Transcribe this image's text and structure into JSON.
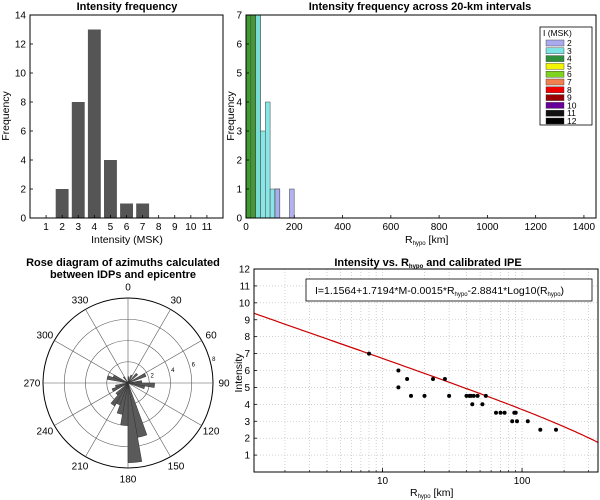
{
  "colors": {
    "bar_gray": "#555555",
    "fit_line": "#cc0000",
    "grid": "#b5b5b5"
  },
  "chart_data": [
    {
      "type": "bar",
      "title": "Intensity frequency",
      "xlabel": "Intensity (MSK)",
      "ylabel": "Frequency",
      "xlim": [
        0,
        12
      ],
      "ylim": [
        0,
        14
      ],
      "xticks": [
        1,
        2,
        3,
        4,
        5,
        6,
        7,
        8,
        9,
        10,
        11
      ],
      "yticks": [
        0,
        2,
        4,
        6,
        8,
        10,
        12,
        14
      ],
      "categories": [
        1,
        2,
        3,
        4,
        5,
        6,
        7,
        8,
        9,
        10,
        11
      ],
      "values": [
        0,
        2,
        8,
        13,
        4,
        1,
        1,
        0,
        0,
        0,
        0
      ]
    },
    {
      "type": "bar",
      "title": "Intensity frequency across 20-km intervals",
      "xlabel": "R",
      "xlabel_sub": "hypo",
      "xlabel_unit": " [km]",
      "ylabel": "Frequency",
      "xlim": [
        0,
        1450
      ],
      "ylim": [
        0,
        7
      ],
      "xticks": [
        0,
        200,
        400,
        600,
        800,
        1000,
        1200,
        1400
      ],
      "yticks": [
        0,
        1,
        2,
        3,
        4,
        5,
        6,
        7
      ],
      "legend_title": "I (MSK)",
      "legend_position": "top-right",
      "legend": [
        {
          "name": "2",
          "color": "#aaaaee"
        },
        {
          "name": "3",
          "color": "#7de3e3"
        },
        {
          "name": "4",
          "color": "#2f8f3a"
        },
        {
          "name": "5",
          "color": "#f4f400"
        },
        {
          "name": "6",
          "color": "#7ed321"
        },
        {
          "name": "7",
          "color": "#f08050"
        },
        {
          "name": "8",
          "color": "#ee0000"
        },
        {
          "name": "9",
          "color": "#990000"
        },
        {
          "name": "10",
          "color": "#660099"
        },
        {
          "name": "11",
          "color": "#111111"
        },
        {
          "name": "12",
          "color": "#000000"
        }
      ],
      "bars": [
        {
          "intensity": "7",
          "x0": 0,
          "x1": 20,
          "count": 7
        },
        {
          "intensity": "6",
          "x0": 0,
          "x1": 20,
          "count": 7
        },
        {
          "intensity": "5",
          "x0": 0,
          "x1": 20,
          "count": 7
        },
        {
          "intensity": "4",
          "x0": 0,
          "x1": 20,
          "count": 7
        },
        {
          "intensity": "5",
          "x0": 20,
          "x1": 40,
          "count": 7
        },
        {
          "intensity": "4",
          "x0": 20,
          "x1": 40,
          "count": 7
        },
        {
          "intensity": "4",
          "x0": 40,
          "x1": 60,
          "count": 7
        },
        {
          "intensity": "3",
          "x0": 40,
          "x1": 60,
          "count": 7
        },
        {
          "intensity": "3",
          "x0": 60,
          "x1": 80,
          "count": 3
        },
        {
          "intensity": "3",
          "x0": 80,
          "x1": 100,
          "count": 4
        },
        {
          "intensity": "3",
          "x0": 100,
          "x1": 120,
          "count": 1
        },
        {
          "intensity": "3",
          "x0": 120,
          "x1": 140,
          "count": 1
        },
        {
          "intensity": "2",
          "x0": 120,
          "x1": 140,
          "count": 1
        },
        {
          "intensity": "2",
          "x0": 180,
          "x1": 200,
          "count": 1
        }
      ]
    },
    {
      "type": "rose",
      "title_line1": "Rose diagram of azimuths calculated",
      "title_line2": "between  IDPs and epicentre",
      "angle_labels": [
        {
          "label": "0",
          "deg": 0
        },
        {
          "label": "30",
          "deg": 30
        },
        {
          "label": "60",
          "deg": 60
        },
        {
          "label": "90",
          "deg": 90
        },
        {
          "label": "120",
          "deg": 120
        },
        {
          "label": "150",
          "deg": 150
        },
        {
          "label": "180",
          "deg": 180
        },
        {
          "label": "210",
          "deg": 210
        },
        {
          "label": "240",
          "deg": 240
        },
        {
          "label": "270",
          "deg": 270
        },
        {
          "label": "300",
          "deg": 300
        },
        {
          "label": "330",
          "deg": 330
        }
      ],
      "rings": [
        2,
        4,
        6,
        8
      ],
      "ring_labels": [
        "2",
        "4",
        "6",
        "8"
      ],
      "rmax": 8,
      "sectors": [
        {
          "from": 0,
          "to": 10,
          "r": 0.6
        },
        {
          "from": 20,
          "to": 30,
          "r": 0.8
        },
        {
          "from": 40,
          "to": 50,
          "r": 1.2
        },
        {
          "from": 60,
          "to": 70,
          "r": 1.8
        },
        {
          "from": 80,
          "to": 90,
          "r": 1.3
        },
        {
          "from": 90,
          "to": 100,
          "r": 2.5
        },
        {
          "from": 100,
          "to": 110,
          "r": 1.6
        },
        {
          "from": 160,
          "to": 170,
          "r": 5.2
        },
        {
          "from": 170,
          "to": 180,
          "r": 7.5
        },
        {
          "from": 180,
          "to": 190,
          "r": 4.0
        },
        {
          "from": 190,
          "to": 200,
          "r": 3.0
        },
        {
          "from": 200,
          "to": 210,
          "r": 2.2
        },
        {
          "from": 210,
          "to": 220,
          "r": 2.5
        },
        {
          "from": 220,
          "to": 230,
          "r": 1.5
        },
        {
          "from": 240,
          "to": 250,
          "r": 1.6
        },
        {
          "from": 250,
          "to": 260,
          "r": 1.2
        },
        {
          "from": 280,
          "to": 290,
          "r": 2.0
        },
        {
          "from": 290,
          "to": 300,
          "r": 1.5
        },
        {
          "from": 320,
          "to": 330,
          "r": 0.7
        }
      ]
    },
    {
      "type": "scatter",
      "title_pre": "Intensity vs. R",
      "title_sub": "hypo",
      "title_post": " and calibrated IPE",
      "xlabel": "R",
      "xlabel_sub": "hypo",
      "xlabel_unit": " [km]",
      "ylabel": "Intensity",
      "xscale": "log",
      "xlim": [
        1.2,
        350
      ],
      "ylim": [
        0,
        12
      ],
      "xticks": [
        {
          "v": 10,
          "label": "10"
        },
        {
          "v": 100,
          "label": "100"
        }
      ],
      "yticks": [
        1,
        2,
        3,
        4,
        5,
        6,
        7,
        8,
        9,
        10,
        11,
        12
      ],
      "annotation_text": "I=1.1564+1.7194*M-0.0015*R",
      "annotation_sub1": "hypo",
      "annotation_text2": "-2.8841*Log10(R",
      "annotation_sub2": "hypo",
      "annotation_text3": ")",
      "fit": {
        "a": 9.6104,
        "b": -0.0015,
        "c": -2.8841
      },
      "points": [
        [
          8,
          7
        ],
        [
          13,
          6
        ],
        [
          13,
          5
        ],
        [
          15,
          5.5
        ],
        [
          16,
          4.5
        ],
        [
          20,
          4.5
        ],
        [
          23,
          5.5
        ],
        [
          28,
          5.5
        ],
        [
          30,
          4.5
        ],
        [
          40,
          4.5
        ],
        [
          42,
          4.5
        ],
        [
          43,
          4.5
        ],
        [
          44,
          4
        ],
        [
          45,
          4.5
        ],
        [
          48,
          4.5
        ],
        [
          52,
          4
        ],
        [
          55,
          4.5
        ],
        [
          65,
          3.5
        ],
        [
          70,
          3.5
        ],
        [
          75,
          3.5
        ],
        [
          85,
          3
        ],
        [
          88,
          3.5
        ],
        [
          90,
          3.5
        ],
        [
          92,
          3
        ],
        [
          110,
          3
        ],
        [
          135,
          2.5
        ],
        [
          175,
          2.5
        ]
      ]
    }
  ]
}
